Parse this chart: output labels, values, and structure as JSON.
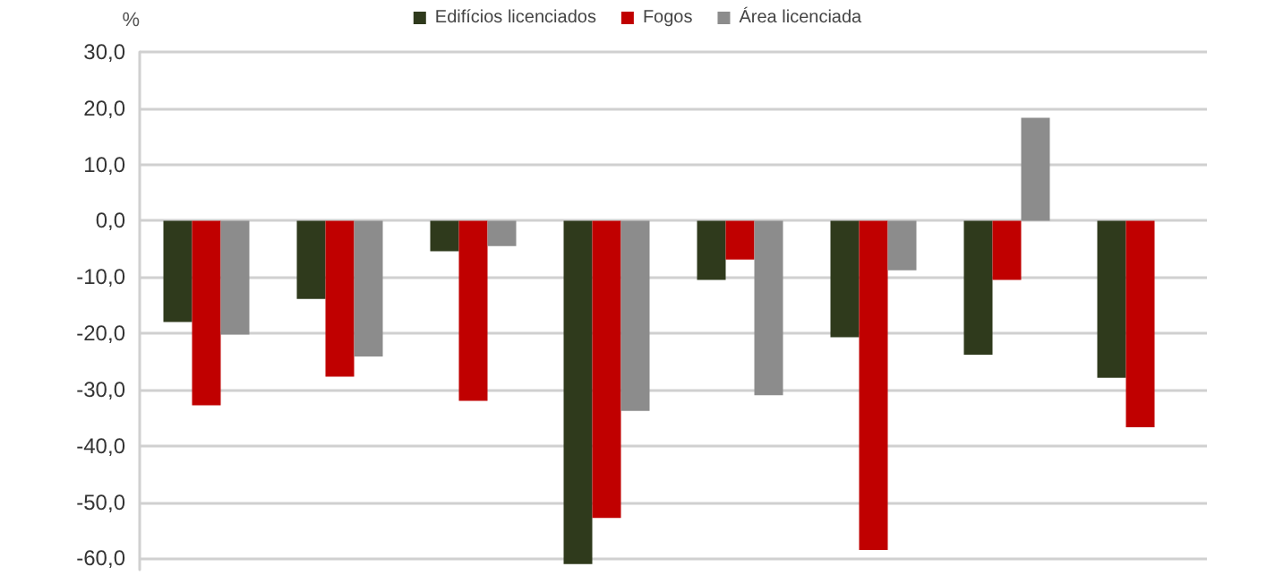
{
  "chart_data": {
    "type": "bar",
    "ylabel": "%",
    "categories": [
      null,
      null,
      null,
      null,
      null,
      null,
      null,
      null
    ],
    "series": [
      {
        "name": "Edifícios licenciados",
        "color": "#2f3a1c",
        "values": [
          -18,
          -13.9,
          -5.4,
          -61,
          -10.5,
          -20.7,
          -23.8,
          -27.9
        ]
      },
      {
        "name": "Fogos",
        "color": "#c00000",
        "values": [
          -32.8,
          -27.7,
          -32,
          -52.8,
          -6.9,
          -58.5,
          -10.5,
          -36.7
        ]
      },
      {
        "name": "Área licenciada",
        "color": "#8c8c8c",
        "values": [
          -20.2,
          -24.1,
          -4.5,
          -33.8,
          -31,
          -8.8,
          18.3,
          null
        ]
      }
    ],
    "ylim": [
      -62,
      30
    ],
    "yticks": [
      {
        "value": 30,
        "label": "30,0"
      },
      {
        "value": 20,
        "label": "20,0"
      },
      {
        "value": 10,
        "label": "10,0"
      },
      {
        "value": 0,
        "label": "0,0"
      },
      {
        "value": -10,
        "label": "-10,0"
      },
      {
        "value": -20,
        "label": "-20,0"
      },
      {
        "value": -30,
        "label": "-30,0"
      },
      {
        "value": -40,
        "label": "-40,0"
      },
      {
        "value": -50,
        "label": "-50,0"
      },
      {
        "value": -60,
        "label": "-60,0"
      }
    ],
    "grid": "y",
    "legend": "top"
  }
}
